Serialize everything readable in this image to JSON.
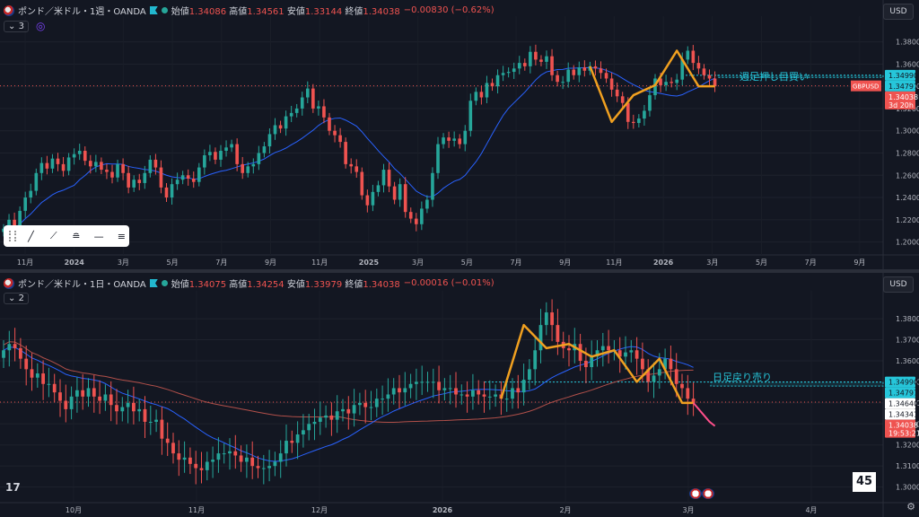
{
  "pane1": {
    "symbol": "ポンド／米ドル・1週・OANDA",
    "ohlc": [
      {
        "k": "始値",
        "v": "1.34086"
      },
      {
        "k": "高値",
        "v": "1.34561"
      },
      {
        "k": "安値",
        "v": "1.33144"
      },
      {
        "k": "終値",
        "v": "1.34038"
      }
    ],
    "change": "−0.00830 (−0.62%)",
    "indicator_count": "3",
    "currency": "USD",
    "annotation": "週足押し目買い",
    "ticker_label": "GBPUSD",
    "price_tags": [
      {
        "label": "1.34990",
        "value": 1.3499,
        "color": "#26c6da",
        "text_color": "#131722"
      },
      {
        "label": "1.34797",
        "value": 1.34797,
        "color": "#26c6da",
        "text_color": "#131722"
      },
      {
        "label": "1.34038",
        "value": 1.34038,
        "color": "#ef5350",
        "text_color": "#ffffff",
        "sub": "3d 20h"
      }
    ]
  },
  "pane2": {
    "symbol": "ポンド／米ドル・1日・OANDA",
    "ohlc": [
      {
        "k": "始値",
        "v": "1.34075"
      },
      {
        "k": "高値",
        "v": "1.34254"
      },
      {
        "k": "安値",
        "v": "1.33979"
      },
      {
        "k": "終値",
        "v": "1.34038"
      }
    ],
    "change": "−0.00016 (−0.01%)",
    "indicator_count": "2",
    "currency": "USD",
    "annotation": "日足戻り売り",
    "counter": "45",
    "price_tags": [
      {
        "label": "1.34990",
        "value": 1.3499,
        "color": "#26c6da",
        "text_color": "#131722"
      },
      {
        "label": "1.34797",
        "value": 1.34797,
        "color": "#26c6da",
        "text_color": "#131722"
      },
      {
        "label": "1.34640",
        "value": 1.3464,
        "color": "#ffffff",
        "text_color": "#131722"
      },
      {
        "label": "1.34341",
        "value": 1.34341,
        "color": "#ffffff",
        "text_color": "#131722"
      },
      {
        "label": "1.34038",
        "value": 1.34038,
        "color": "#ef5350",
        "text_color": "#ffffff",
        "sub": "19:53:21"
      }
    ]
  },
  "colors": {
    "up": "#26a69a",
    "down": "#ef5350",
    "ma_blue": "#2962ff",
    "ma_red": "#b2504a",
    "orange": "#f0a020",
    "zone": "#26c6da",
    "bg": "#131722"
  },
  "chart_data": [
    {
      "type": "candlestick",
      "timeframe": "1週",
      "ylim": [
        1.19,
        1.395
      ],
      "y_ticks": [
        1.2,
        1.22,
        1.24,
        1.26,
        1.28,
        1.3,
        1.32,
        1.34,
        1.36,
        1.38
      ],
      "x_ticks": [
        "11月",
        "2024",
        "3月",
        "5月",
        "7月",
        "9月",
        "11月",
        "2025",
        "3月",
        "5月",
        "7月",
        "9月",
        "11月",
        "2026",
        "3月",
        "5月",
        "7月",
        "9月"
      ],
      "closes": [
        1.212,
        1.22,
        1.205,
        1.228,
        1.24,
        1.246,
        1.262,
        1.271,
        1.266,
        1.275,
        1.27,
        1.264,
        1.276,
        1.279,
        1.282,
        1.273,
        1.268,
        1.272,
        1.265,
        1.263,
        1.258,
        1.27,
        1.262,
        1.249,
        1.256,
        1.253,
        1.262,
        1.274,
        1.267,
        1.249,
        1.24,
        1.252,
        1.256,
        1.26,
        1.257,
        1.254,
        1.267,
        1.278,
        1.281,
        1.274,
        1.282,
        1.285,
        1.288,
        1.27,
        1.262,
        1.268,
        1.27,
        1.28,
        1.286,
        1.297,
        1.305,
        1.302,
        1.313,
        1.316,
        1.32,
        1.33,
        1.338,
        1.32,
        1.322,
        1.312,
        1.3,
        1.296,
        1.29,
        1.27,
        1.268,
        1.263,
        1.242,
        1.233,
        1.245,
        1.251,
        1.265,
        1.25,
        1.238,
        1.252,
        1.227,
        1.221,
        1.216,
        1.23,
        1.238,
        1.262,
        1.288,
        1.294,
        1.291,
        1.293,
        1.288,
        1.3,
        1.327,
        1.335,
        1.33,
        1.343,
        1.34,
        1.35,
        1.352,
        1.353,
        1.356,
        1.361,
        1.358,
        1.371,
        1.364,
        1.362,
        1.367,
        1.35,
        1.344,
        1.344,
        1.355,
        1.35,
        1.357,
        1.354,
        1.358,
        1.356,
        1.352,
        1.347,
        1.337,
        1.331,
        1.325,
        1.308,
        1.307,
        1.311,
        1.318,
        1.332,
        1.347,
        1.341,
        1.344,
        1.343,
        1.346,
        1.364,
        1.372,
        1.361,
        1.356,
        1.35,
        1.347,
        1.34
      ]
    },
    {
      "type": "candlestick",
      "timeframe": "1日",
      "ylim": [
        1.296,
        1.389
      ],
      "y_ticks": [
        1.3,
        1.31,
        1.32,
        1.33,
        1.34,
        1.35,
        1.36,
        1.37,
        1.38
      ],
      "x_ticks": [
        "10月",
        "11月",
        "12月",
        "2026",
        "2月",
        "3月",
        "4月"
      ],
      "closes": [
        1.365,
        1.368,
        1.366,
        1.361,
        1.356,
        1.352,
        1.354,
        1.349,
        1.349,
        1.345,
        1.341,
        1.337,
        1.343,
        1.346,
        1.343,
        1.347,
        1.343,
        1.341,
        1.344,
        1.339,
        1.336,
        1.338,
        1.34,
        1.336,
        1.337,
        1.331,
        1.331,
        1.332,
        1.323,
        1.321,
        1.316,
        1.313,
        1.314,
        1.311,
        1.309,
        1.308,
        1.312,
        1.313,
        1.316,
        1.316,
        1.317,
        1.315,
        1.312,
        1.314,
        1.31,
        1.309,
        1.309,
        1.31,
        1.312,
        1.316,
        1.322,
        1.321,
        1.325,
        1.327,
        1.33,
        1.331,
        1.333,
        1.334,
        1.332,
        1.336,
        1.337,
        1.335,
        1.339,
        1.34,
        1.338,
        1.338,
        1.342,
        1.342,
        1.344,
        1.347,
        1.345,
        1.347,
        1.349,
        1.35,
        1.35,
        1.35,
        1.35,
        1.346,
        1.347,
        1.347,
        1.344,
        1.344,
        1.343,
        1.346,
        1.344,
        1.343,
        1.343,
        1.344,
        1.342,
        1.342,
        1.347,
        1.345,
        1.351,
        1.356,
        1.365,
        1.377,
        1.383,
        1.377,
        1.369,
        1.366,
        1.365,
        1.368,
        1.36,
        1.357,
        1.362,
        1.365,
        1.367,
        1.365,
        1.365,
        1.362,
        1.364,
        1.365,
        1.361,
        1.356,
        1.35,
        1.353,
        1.356,
        1.361,
        1.356,
        1.349,
        1.347,
        1.342,
        1.34
      ],
      "projection": [
        1.337,
        1.334,
        1.331,
        1.329
      ]
    }
  ]
}
